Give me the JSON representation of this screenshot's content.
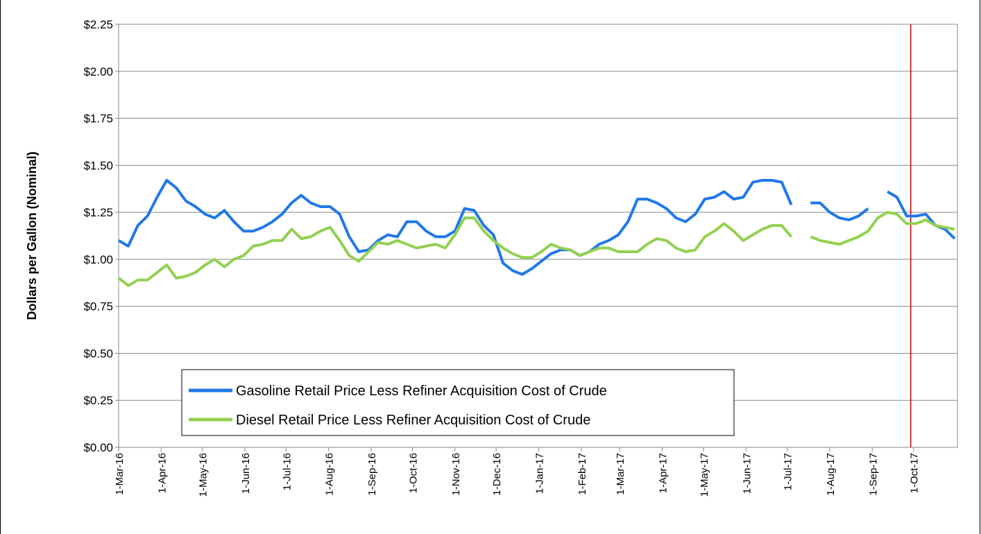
{
  "chart_data": {
    "type": "line",
    "y_label": "Dollars per Gallon (Nominal)",
    "x": [
      "2016-03-01",
      "2016-03-08",
      "2016-03-15",
      "2016-03-22",
      "2016-03-29",
      "2016-04-05",
      "2016-04-12",
      "2016-04-19",
      "2016-04-26",
      "2016-05-03",
      "2016-05-10",
      "2016-05-17",
      "2016-05-24",
      "2016-05-31",
      "2016-06-07",
      "2016-06-14",
      "2016-06-21",
      "2016-06-28",
      "2016-07-05",
      "2016-07-12",
      "2016-07-19",
      "2016-07-26",
      "2016-08-02",
      "2016-08-09",
      "2016-08-16",
      "2016-08-23",
      "2016-08-30",
      "2016-09-06",
      "2016-09-13",
      "2016-09-20",
      "2016-09-27",
      "2016-10-04",
      "2016-10-11",
      "2016-10-18",
      "2016-10-25",
      "2016-11-01",
      "2016-11-08",
      "2016-11-15",
      "2016-11-22",
      "2016-11-29",
      "2016-12-06",
      "2016-12-13",
      "2016-12-20",
      "2016-12-27",
      "2017-01-03",
      "2017-01-10",
      "2017-01-17",
      "2017-01-24",
      "2017-01-31",
      "2017-02-07",
      "2017-02-14",
      "2017-02-21",
      "2017-02-28",
      "2017-03-07",
      "2017-03-14",
      "2017-03-21",
      "2017-03-28",
      "2017-04-04",
      "2017-04-11",
      "2017-04-18",
      "2017-04-25",
      "2017-05-02",
      "2017-05-09",
      "2017-05-16",
      "2017-05-23",
      "2017-05-30",
      "2017-06-06",
      "2017-06-13",
      "2017-06-20",
      "2017-06-27",
      "2017-07-04",
      "2017-07-11",
      "2017-07-18",
      "2017-07-25",
      "2017-08-01",
      "2017-08-08",
      "2017-08-15",
      "2017-08-22",
      "2017-08-29",
      "2017-09-05",
      "2017-09-12",
      "2017-09-19",
      "2017-09-26",
      "2017-10-03",
      "2017-10-10",
      "2017-10-17",
      "2017-10-24",
      "2017-10-31"
    ],
    "series": [
      {
        "name": "Gasoline Retail Price Less Refiner Acquisition Cost of Crude",
        "color": "#1f78e8",
        "values": [
          1.1,
          1.07,
          1.18,
          1.23,
          1.33,
          1.42,
          1.38,
          1.31,
          1.28,
          1.24,
          1.22,
          1.26,
          1.2,
          1.15,
          1.15,
          1.17,
          1.2,
          1.24,
          1.3,
          1.34,
          1.3,
          1.28,
          1.28,
          1.24,
          1.12,
          1.04,
          1.05,
          1.1,
          1.13,
          1.12,
          1.2,
          1.2,
          1.15,
          1.12,
          1.12,
          1.15,
          1.27,
          1.26,
          1.18,
          1.13,
          0.98,
          0.94,
          0.92,
          0.95,
          0.99,
          1.03,
          1.05,
          1.05,
          1.02,
          1.04,
          1.08,
          1.1,
          1.13,
          1.2,
          1.32,
          1.32,
          1.3,
          1.27,
          1.22,
          1.2,
          1.24,
          1.32,
          1.33,
          1.36,
          1.32,
          1.33,
          1.41,
          1.42,
          1.42,
          1.41,
          1.29,
          null,
          1.3,
          1.3,
          1.25,
          1.22,
          1.21,
          1.23,
          1.27,
          null,
          1.36,
          1.33,
          1.23,
          1.23,
          1.24,
          1.18,
          1.16,
          1.11
        ]
      },
      {
        "name": "Diesel Retail Price Less Refiner Acquisition Cost of Crude",
        "color": "#92d050",
        "values": [
          0.9,
          0.86,
          0.89,
          0.89,
          0.93,
          0.97,
          0.9,
          0.91,
          0.93,
          0.97,
          1.0,
          0.96,
          1.0,
          1.02,
          1.07,
          1.08,
          1.1,
          1.1,
          1.16,
          1.11,
          1.12,
          1.15,
          1.17,
          1.1,
          1.02,
          0.99,
          1.04,
          1.09,
          1.08,
          1.1,
          1.08,
          1.06,
          1.07,
          1.08,
          1.06,
          1.13,
          1.22,
          1.22,
          1.15,
          1.1,
          1.06,
          1.03,
          1.01,
          1.01,
          1.04,
          1.08,
          1.06,
          1.05,
          1.02,
          1.04,
          1.06,
          1.06,
          1.04,
          1.04,
          1.04,
          1.08,
          1.11,
          1.1,
          1.06,
          1.04,
          1.05,
          1.12,
          1.15,
          1.19,
          1.15,
          1.1,
          1.13,
          1.16,
          1.18,
          1.18,
          1.12,
          null,
          1.12,
          1.1,
          1.09,
          1.08,
          1.1,
          1.12,
          1.15,
          1.22,
          1.25,
          1.24,
          1.19,
          1.19,
          1.21,
          1.18,
          1.17,
          1.16
        ]
      }
    ],
    "xlim": [
      "2016-03-01",
      "2017-11-02"
    ],
    "xticks": [
      {
        "value": "2016-03-01",
        "label": "1-Mar-16"
      },
      {
        "value": "2016-04-01",
        "label": "1-Apr-16"
      },
      {
        "value": "2016-05-01",
        "label": "1-May-16"
      },
      {
        "value": "2016-06-01",
        "label": "1-Jun-16"
      },
      {
        "value": "2016-07-01",
        "label": "1-Jul-16"
      },
      {
        "value": "2016-08-01",
        "label": "1-Aug-16"
      },
      {
        "value": "2016-09-01",
        "label": "1-Sep-16"
      },
      {
        "value": "2016-10-01",
        "label": "1-Oct-16"
      },
      {
        "value": "2016-11-01",
        "label": "1-Nov-16"
      },
      {
        "value": "2016-12-01",
        "label": "1-Dec-16"
      },
      {
        "value": "2017-01-01",
        "label": "1-Jan-17"
      },
      {
        "value": "2017-02-01",
        "label": "1-Feb-17"
      },
      {
        "value": "2017-03-01",
        "label": "1-Mar-17"
      },
      {
        "value": "2017-04-01",
        "label": "1-Apr-17"
      },
      {
        "value": "2017-05-01",
        "label": "1-May-17"
      },
      {
        "value": "2017-06-01",
        "label": "1-Jun-17"
      },
      {
        "value": "2017-07-01",
        "label": "1-Jul-17"
      },
      {
        "value": "2017-08-01",
        "label": "1-Aug-17"
      },
      {
        "value": "2017-09-01",
        "label": "1-Sep-17"
      },
      {
        "value": "2017-10-01",
        "label": "1-Oct-17"
      }
    ],
    "ylim": [
      0,
      2.25
    ],
    "yticks": [
      {
        "value": 0,
        "label": "$0.00"
      },
      {
        "value": 0.25,
        "label": "$0.25"
      },
      {
        "value": 0.5,
        "label": "$0.50"
      },
      {
        "value": 0.75,
        "label": "$0.75"
      },
      {
        "value": 1,
        "label": "$1.00"
      },
      {
        "value": 1.25,
        "label": "$1.25"
      },
      {
        "value": 1.5,
        "label": "$1.50"
      },
      {
        "value": 1.75,
        "label": "$1.75"
      },
      {
        "value": 2,
        "label": "$2.00"
      },
      {
        "value": 2.25,
        "label": "$2.25"
      }
    ],
    "grid": true,
    "vline": {
      "x": "2017-09-29",
      "color": "#c00000"
    }
  }
}
